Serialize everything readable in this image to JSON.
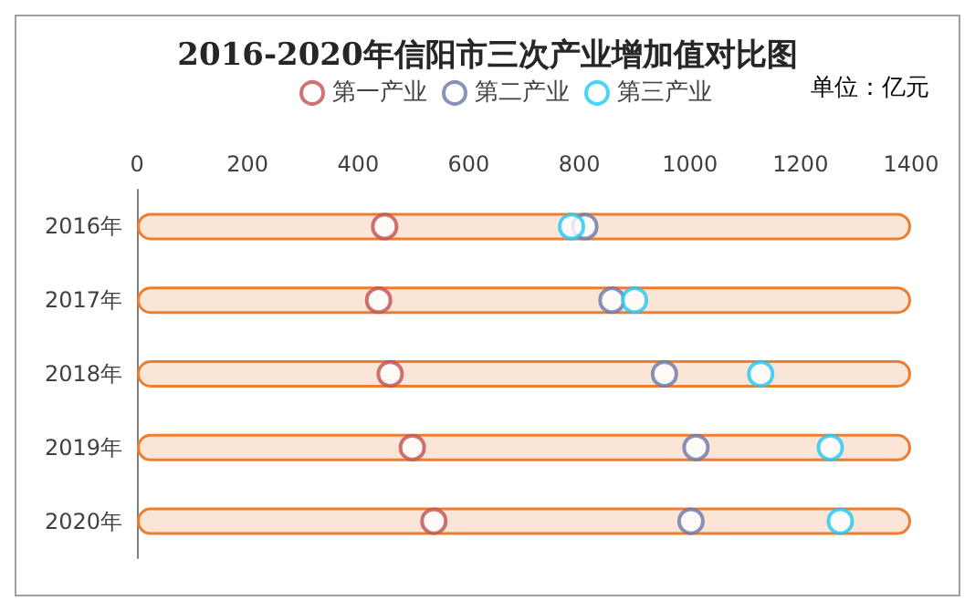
{
  "chart_data": {
    "type": "scatter",
    "title": "2016-2020年信阳市三次产业增加值对比图",
    "annotations": [
      "单位：亿元"
    ],
    "orientation": "horizontal",
    "categories": [
      "2016年",
      "2017年",
      "2018年",
      "2019年",
      "2020年"
    ],
    "xlim": [
      0,
      1400
    ],
    "xticks": [
      0,
      200,
      400,
      600,
      800,
      1000,
      1200,
      1400
    ],
    "series": [
      {
        "type": "bar",
        "color": "#fbe5d6",
        "values": [
          1400,
          1400,
          1400,
          1400,
          1400
        ]
      },
      {
        "name": "第一产业",
        "color": "#c0504d",
        "values": [
          448,
          437,
          458,
          498,
          537
        ]
      },
      {
        "name": "第二产业",
        "color": "#6b77a8",
        "values": [
          810,
          859,
          954,
          1011,
          1002
        ]
      },
      {
        "name": "第三产业",
        "color": "#1fc8f5",
        "values": [
          786,
          900,
          1128,
          1254,
          1272
        ]
      }
    ],
    "marker": "circle",
    "grid": false,
    "legend": "top"
  }
}
